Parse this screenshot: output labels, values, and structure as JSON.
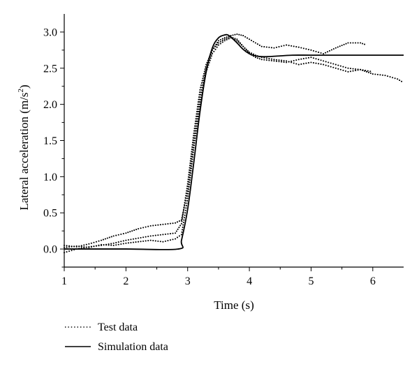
{
  "chart_data": {
    "type": "line",
    "xlabel": "Time (s)",
    "ylabel_main": "Lateral acceleration (m/s",
    "ylabel_sup": "2",
    "ylabel_close": ")",
    "xlim": [
      1,
      6.5
    ],
    "ylim": [
      -0.25,
      3.25
    ],
    "xticks": [
      1,
      2,
      3,
      4,
      5,
      6
    ],
    "yticks": [
      0.0,
      0.5,
      1.0,
      1.5,
      2.0,
      2.5,
      3.0
    ],
    "ytick_labels": [
      "0.0",
      "0.5",
      "1.0",
      "1.5",
      "2.0",
      "2.5",
      "3.0"
    ],
    "legend_position": "bottom-left",
    "series": [
      {
        "name": "Test data",
        "style": "dotted",
        "runs": [
          {
            "x": [
              1.0,
              1.2,
              1.4,
              1.6,
              1.8,
              2.0,
              2.2,
              2.4,
              2.6,
              2.8,
              2.9,
              3.0,
              3.1,
              3.2,
              3.3,
              3.4,
              3.5,
              3.6,
              3.7,
              3.8,
              3.9,
              4.0,
              4.1,
              4.2,
              4.4,
              4.6,
              4.8,
              5.0,
              5.2,
              5.4,
              5.6,
              5.8,
              5.9
            ],
            "y": [
              0.05,
              0.03,
              0.07,
              0.12,
              0.18,
              0.22,
              0.28,
              0.32,
              0.34,
              0.36,
              0.4,
              0.8,
              1.5,
              2.1,
              2.5,
              2.75,
              2.88,
              2.92,
              2.95,
              2.97,
              2.95,
              2.9,
              2.85,
              2.8,
              2.78,
              2.82,
              2.79,
              2.75,
              2.7,
              2.78,
              2.85,
              2.85,
              2.82
            ]
          },
          {
            "x": [
              1.0,
              1.2,
              1.4,
              1.6,
              1.8,
              2.0,
              2.2,
              2.4,
              2.6,
              2.8,
              2.9,
              3.0,
              3.1,
              3.2,
              3.3,
              3.4,
              3.5,
              3.6,
              3.7,
              3.8,
              3.9,
              4.0,
              4.1,
              4.2,
              4.4,
              4.6,
              4.8,
              5.0,
              5.2,
              5.4,
              5.6,
              5.8,
              6.0
            ],
            "y": [
              -0.05,
              0.0,
              0.03,
              0.05,
              0.08,
              0.12,
              0.15,
              0.18,
              0.2,
              0.22,
              0.35,
              0.9,
              1.6,
              2.2,
              2.55,
              2.75,
              2.85,
              2.9,
              2.93,
              2.9,
              2.8,
              2.7,
              2.65,
              2.62,
              2.6,
              2.58,
              2.62,
              2.65,
              2.6,
              2.55,
              2.5,
              2.48,
              2.45
            ]
          },
          {
            "x": [
              1.0,
              1.2,
              1.4,
              1.6,
              1.8,
              2.0,
              2.2,
              2.4,
              2.6,
              2.8,
              2.9,
              3.0,
              3.1,
              3.2,
              3.3,
              3.4,
              3.5,
              3.6,
              3.7,
              3.8,
              3.9,
              4.0,
              4.1,
              4.2,
              4.4,
              4.6,
              4.8,
              5.0,
              5.2,
              5.4,
              5.6,
              5.8,
              6.0,
              6.2,
              6.4,
              6.5
            ],
            "y": [
              0.02,
              0.04,
              0.02,
              0.06,
              0.05,
              0.08,
              0.1,
              0.12,
              0.1,
              0.14,
              0.2,
              0.7,
              1.4,
              2.0,
              2.45,
              2.7,
              2.82,
              2.88,
              2.92,
              2.88,
              2.8,
              2.72,
              2.68,
              2.65,
              2.62,
              2.6,
              2.55,
              2.58,
              2.55,
              2.5,
              2.45,
              2.48,
              2.42,
              2.4,
              2.35,
              2.3
            ]
          }
        ]
      },
      {
        "name": "Simulation data",
        "style": "solid",
        "x": [
          1.0,
          2.0,
          2.85,
          2.9,
          3.0,
          3.1,
          3.2,
          3.3,
          3.4,
          3.5,
          3.6,
          3.65,
          3.7,
          3.8,
          3.9,
          4.0,
          4.1,
          4.2,
          4.3,
          4.5,
          4.7,
          5.0,
          5.5,
          6.0,
          6.5
        ],
        "y": [
          0.0,
          0.0,
          0.0,
          0.12,
          0.55,
          1.2,
          1.9,
          2.45,
          2.78,
          2.92,
          2.96,
          2.96,
          2.93,
          2.85,
          2.76,
          2.7,
          2.67,
          2.66,
          2.66,
          2.67,
          2.68,
          2.68,
          2.68,
          2.68,
          2.68
        ]
      }
    ]
  }
}
